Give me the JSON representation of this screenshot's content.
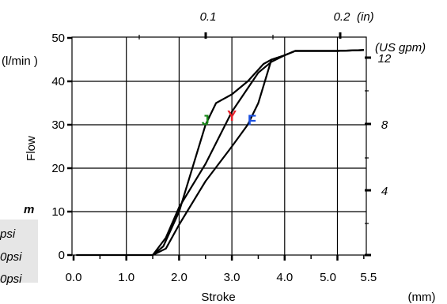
{
  "chart_data": {
    "type": "line",
    "xlabel": "Stroke",
    "xunit": "(mm)",
    "ylabel": "Flow",
    "yunit": "(l/min )",
    "xlim": [
      0,
      5.5
    ],
    "ylim": [
      0,
      50
    ],
    "x_ticks": [
      "0.0",
      "1.0",
      "2.0",
      "3.0",
      "4.0",
      "5.0",
      "5.5"
    ],
    "y_ticks": [
      "0",
      "10",
      "20",
      "30",
      "40",
      "50"
    ],
    "top_axis": {
      "unit": "(in)",
      "ticks": [
        "0.1",
        "0.2"
      ]
    },
    "right_axis": {
      "unit": "(US gpm)",
      "ticks": [
        "4",
        "8",
        "12"
      ]
    },
    "grid": true,
    "series": [
      {
        "name": "J",
        "color": "#1a8a1a",
        "x": [
          1.5,
          1.7,
          2.0,
          2.5,
          2.7,
          3.0,
          3.3,
          3.6,
          3.75,
          4.0,
          4.2,
          5.0,
          5.5
        ],
        "y": [
          0,
          2,
          10,
          30,
          35,
          37,
          40,
          44,
          45,
          46,
          47,
          47,
          47.2
        ]
      },
      {
        "name": "Y",
        "color": "#e8202a",
        "x": [
          1.5,
          1.75,
          2.0,
          2.5,
          3.0,
          3.5,
          3.75,
          4.0,
          4.2,
          5.0,
          5.5
        ],
        "y": [
          0,
          4,
          11,
          21,
          33,
          42,
          44.5,
          46,
          47,
          47,
          47.2
        ]
      },
      {
        "name": "F",
        "color": "#1a4fe0",
        "x": [
          1.5,
          1.75,
          2.0,
          2.5,
          3.0,
          3.3,
          3.5,
          3.75,
          4.0,
          4.2,
          5.0,
          5.5
        ],
        "y": [
          0,
          1.5,
          7,
          17,
          25,
          30,
          35,
          45,
          46,
          47,
          47,
          47.2
        ]
      }
    ],
    "legend_partial": {
      "heading_fragment": "m",
      "rows": [
        "psi",
        "0psi",
        "0psi"
      ]
    }
  }
}
